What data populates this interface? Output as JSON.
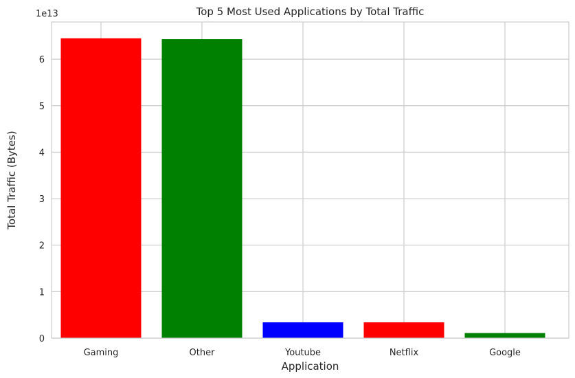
{
  "chart_data": {
    "type": "bar",
    "title": "Top 5 Most Used Applications by Total Traffic",
    "xlabel": "Application",
    "ylabel": "Total Traffic (Bytes)",
    "y_offset_label": "1e13",
    "categories": [
      "Gaming",
      "Other",
      "Youtube",
      "Netflix",
      "Google"
    ],
    "values": [
      64.5,
      64.3,
      3.4,
      3.4,
      1.1
    ],
    "colors": [
      "#ff0000",
      "#008000",
      "#0000ff",
      "#ff0000",
      "#008000"
    ],
    "yticks": [
      0,
      10,
      20,
      30,
      40,
      50,
      60
    ],
    "ytick_labels": [
      "0",
      "1",
      "2",
      "3",
      "4",
      "5",
      "6"
    ],
    "ylim": [
      0,
      68
    ],
    "grid": true
  }
}
